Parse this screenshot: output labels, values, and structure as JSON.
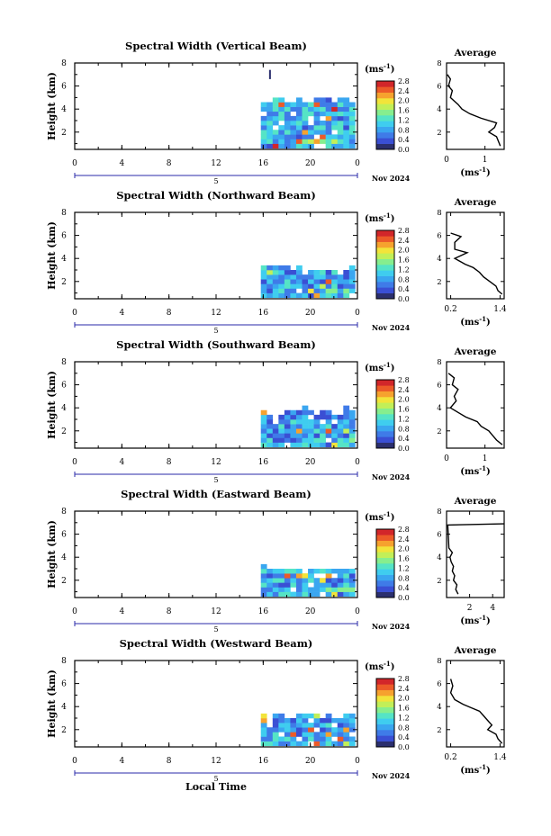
{
  "figure": {
    "month_label": "Nov 2024",
    "x_title": "Local Time",
    "y_title": "Height (km)",
    "cb_unit": "(ms",
    "cb_unit_sup": "-1",
    "avg_title": "Average",
    "avg_xunit": "(ms",
    "avg_xunit_sup": "-1",
    "day_marker": "5"
  },
  "colors": {
    "scale": [
      "#2b2f6e",
      "#3a4fd4",
      "#3f7be8",
      "#3aa6f0",
      "#3fcdef",
      "#55e4c6",
      "#86ee8e",
      "#c2ef58",
      "#f2e43a",
      "#f6a22e",
      "#ec5a28",
      "#d2262a"
    ]
  },
  "chart_data": [
    {
      "type": "heatmap",
      "title": "Spectral Width (Vertical Beam)",
      "x_ticks": [
        "0",
        "4",
        "8",
        "12",
        "16",
        "20",
        "0"
      ],
      "y_ticks": [
        "2",
        "4",
        "6",
        "8"
      ],
      "xlim": [
        0,
        24
      ],
      "ylim": [
        0.5,
        8
      ],
      "cb_ticks": [
        "0.0",
        "0.4",
        "0.8",
        "1.2",
        "1.6",
        "2.0",
        "2.4",
        "2.8"
      ],
      "cb_range": [
        0,
        2.8
      ],
      "echo": {
        "x_start": 15.8,
        "x_end": 24,
        "top_km": [
          4.5,
          4.6,
          4.6,
          4.7,
          4.5,
          4.4,
          4.6,
          4.5,
          4.3,
          4.6,
          4.7,
          4.5,
          4.4,
          4.6,
          4.5,
          4.4,
          4.7
        ],
        "bottom_km": 0.6,
        "cell_hr": 0.5,
        "cell_km": 0.4,
        "mean": 0.9,
        "seed": 11
      },
      "extra_echo": [
        {
          "x": 16.5,
          "y0": 6.6,
          "y1": 7.4,
          "value": 0.2
        }
      ],
      "avg": {
        "xlim": [
          0,
          1.5
        ],
        "x_ticks": [
          "0",
          "1"
        ],
        "y_ticks": [
          "2",
          "4",
          "6",
          "8"
        ],
        "profile": [
          [
            1.4,
            0.8
          ],
          [
            1.35,
            1.2
          ],
          [
            1.3,
            1.6
          ],
          [
            1.1,
            2.0
          ],
          [
            1.25,
            2.4
          ],
          [
            1.3,
            2.8
          ],
          [
            0.9,
            3.2
          ],
          [
            0.6,
            3.6
          ],
          [
            0.4,
            4.0
          ],
          [
            0.3,
            4.4
          ],
          [
            0.1,
            5.0
          ],
          [
            0.15,
            5.6
          ],
          [
            0.05,
            6.0
          ],
          [
            0.1,
            6.6
          ],
          [
            0.02,
            7.0
          ]
        ]
      }
    },
    {
      "type": "heatmap",
      "title": "Spectral Width (Northward Beam)",
      "x_ticks": [
        "0",
        "4",
        "8",
        "12",
        "16",
        "20",
        "0"
      ],
      "y_ticks": [
        "2",
        "4",
        "6",
        "8"
      ],
      "xlim": [
        0,
        24
      ],
      "ylim": [
        0.5,
        8
      ],
      "cb_ticks": [
        "0.0",
        "0.4",
        "0.8",
        "1.2",
        "1.6",
        "2.0",
        "2.4",
        "2.8"
      ],
      "cb_range": [
        0,
        2.8
      ],
      "echo": {
        "x_start": 15.8,
        "x_end": 24,
        "top_km": [
          3.4,
          3.4,
          3.3,
          3.3,
          3.2,
          3.1,
          3.0,
          2.8,
          2.8,
          2.7,
          2.8,
          2.8,
          2.6,
          2.7,
          2.8,
          3.0,
          3.5
        ],
        "bottom_km": 0.6,
        "cell_hr": 0.5,
        "cell_km": 0.4,
        "mean": 0.8,
        "seed": 23
      },
      "extra_echo": [],
      "avg": {
        "xlim": [
          0.1,
          1.5
        ],
        "x_ticks": [
          "0.2",
          "1.4"
        ],
        "y_ticks": [
          "2",
          "4",
          "6",
          "8"
        ],
        "profile": [
          [
            1.45,
            0.9
          ],
          [
            1.35,
            1.2
          ],
          [
            1.3,
            1.6
          ],
          [
            1.15,
            2.0
          ],
          [
            1.0,
            2.4
          ],
          [
            0.9,
            2.8
          ],
          [
            0.75,
            3.2
          ],
          [
            0.55,
            3.5
          ],
          [
            0.45,
            3.7
          ],
          [
            0.3,
            4.0
          ],
          [
            0.6,
            4.5
          ],
          [
            0.3,
            4.8
          ],
          [
            0.3,
            5.4
          ],
          [
            0.45,
            5.9
          ],
          [
            0.2,
            6.2
          ]
        ]
      }
    },
    {
      "type": "heatmap",
      "title": "Spectral Width (Southward Beam)",
      "x_ticks": [
        "0",
        "4",
        "8",
        "12",
        "16",
        "20",
        "0"
      ],
      "y_ticks": [
        "2",
        "4",
        "6",
        "8"
      ],
      "xlim": [
        0,
        24
      ],
      "ylim": [
        0.5,
        8
      ],
      "cb_ticks": [
        "0.0",
        "0.4",
        "0.8",
        "1.2",
        "1.6",
        "2.0",
        "2.4",
        "2.8"
      ],
      "cb_range": [
        0,
        2.8
      ],
      "echo": {
        "x_start": 15.8,
        "x_end": 24,
        "top_km": [
          3.6,
          3.0,
          3.4,
          3.3,
          3.4,
          3.8,
          3.5,
          3.9,
          3.6,
          3.3,
          3.5,
          3.6,
          3.4,
          3.3,
          3.7,
          3.9,
          3.5
        ],
        "bottom_km": 0.6,
        "cell_hr": 0.5,
        "cell_km": 0.4,
        "mean": 0.8,
        "seed": 37
      },
      "extra_echo": [],
      "avg": {
        "xlim": [
          0,
          1.5
        ],
        "x_ticks": [
          "0",
          "1"
        ],
        "y_ticks": [
          "2",
          "4",
          "6",
          "8"
        ],
        "profile": [
          [
            1.45,
            0.8
          ],
          [
            1.3,
            1.2
          ],
          [
            1.2,
            1.6
          ],
          [
            1.1,
            2.0
          ],
          [
            0.9,
            2.4
          ],
          [
            0.8,
            2.8
          ],
          [
            0.5,
            3.2
          ],
          [
            0.3,
            3.6
          ],
          [
            0.1,
            4.0
          ],
          [
            0.25,
            4.6
          ],
          [
            0.2,
            5.0
          ],
          [
            0.3,
            5.6
          ],
          [
            0.15,
            6.0
          ],
          [
            0.2,
            6.6
          ],
          [
            0.05,
            7.0
          ]
        ]
      }
    },
    {
      "type": "heatmap",
      "title": "Spectral Width (Eastward Beam)",
      "x_ticks": [
        "0",
        "4",
        "8",
        "12",
        "16",
        "20",
        "0"
      ],
      "y_ticks": [
        "2",
        "4",
        "6",
        "8"
      ],
      "xlim": [
        0,
        24
      ],
      "ylim": [
        0.5,
        8
      ],
      "cb_ticks": [
        "0.0",
        "0.4",
        "0.8",
        "1.2",
        "1.6",
        "2.0",
        "2.4",
        "2.8"
      ],
      "cb_range": [
        0,
        2.8
      ],
      "echo": {
        "x_start": 15.8,
        "x_end": 24,
        "top_km": [
          3.2,
          3.0,
          2.9,
          2.8,
          2.9,
          2.7,
          2.6,
          2.8,
          2.7,
          2.9,
          2.8,
          2.7,
          2.8,
          2.9,
          3.0,
          3.1,
          3.3
        ],
        "bottom_km": 0.6,
        "cell_hr": 0.5,
        "cell_km": 0.4,
        "mean": 0.85,
        "seed": 51
      },
      "extra_echo": [],
      "avg": {
        "xlim": [
          0,
          5
        ],
        "x_ticks": [
          "2",
          "4"
        ],
        "y_ticks": [
          "2",
          "4",
          "6",
          "8"
        ],
        "profile": [
          [
            1.0,
            0.8
          ],
          [
            0.8,
            1.2
          ],
          [
            0.9,
            1.6
          ],
          [
            0.6,
            2.0
          ],
          [
            0.7,
            2.4
          ],
          [
            0.5,
            2.8
          ],
          [
            0.6,
            3.2
          ],
          [
            0.4,
            3.6
          ],
          [
            0.3,
            4.0
          ],
          [
            0.5,
            4.4
          ],
          [
            0.2,
            4.8
          ],
          [
            0.1,
            6.8
          ],
          [
            5.0,
            6.9
          ]
        ]
      }
    },
    {
      "type": "heatmap",
      "title": "Spectral Width (Westward Beam)",
      "x_ticks": [
        "0",
        "4",
        "8",
        "12",
        "16",
        "20",
        "0"
      ],
      "y_ticks": [
        "2",
        "4",
        "6",
        "8"
      ],
      "xlim": [
        0,
        24
      ],
      "ylim": [
        0.5,
        8
      ],
      "cb_ticks": [
        "0.0",
        "0.4",
        "0.8",
        "1.2",
        "1.6",
        "2.0",
        "2.4",
        "2.8"
      ],
      "cb_range": [
        0,
        2.8
      ],
      "echo": {
        "x_start": 15.8,
        "x_end": 24,
        "top_km": [
          3.0,
          2.9,
          3.1,
          3.2,
          3.0,
          2.9,
          3.3,
          3.4,
          3.1,
          3.2,
          3.0,
          3.1,
          2.9,
          3.0,
          3.1,
          3.2,
          3.3
        ],
        "bottom_km": 0.6,
        "cell_hr": 0.5,
        "cell_km": 0.4,
        "mean": 0.85,
        "seed": 67
      },
      "extra_echo": [],
      "avg": {
        "xlim": [
          0.1,
          1.5
        ],
        "x_ticks": [
          "0.2",
          "1.4"
        ],
        "y_ticks": [
          "2",
          "4",
          "6",
          "8"
        ],
        "profile": [
          [
            1.45,
            0.8
          ],
          [
            1.35,
            1.2
          ],
          [
            1.3,
            1.6
          ],
          [
            1.1,
            2.0
          ],
          [
            1.2,
            2.4
          ],
          [
            1.1,
            2.8
          ],
          [
            1.0,
            3.2
          ],
          [
            0.9,
            3.6
          ],
          [
            0.7,
            3.9
          ],
          [
            0.5,
            4.2
          ],
          [
            0.3,
            4.6
          ],
          [
            0.2,
            5.2
          ],
          [
            0.25,
            5.8
          ],
          [
            0.2,
            6.4
          ]
        ]
      }
    }
  ]
}
